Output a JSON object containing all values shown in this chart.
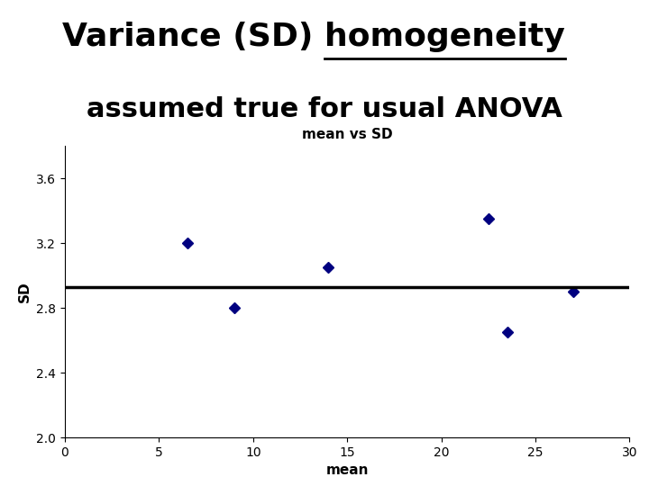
{
  "title_plain": "Variance (SD) ",
  "title_underlined": "homogeneity",
  "title_line2": "assumed true for usual ANOVA",
  "subplot_title": "mean vs SD",
  "xlabel": "mean",
  "ylabel": "SD",
  "x_data": [
    6.5,
    9.0,
    14.0,
    22.5,
    23.5,
    27.0
  ],
  "y_data": [
    3.2,
    2.8,
    3.05,
    3.35,
    2.65,
    2.9
  ],
  "hline_y": 2.93,
  "xlim": [
    0,
    30
  ],
  "ylim": [
    2.0,
    3.8
  ],
  "xticks": [
    0,
    5,
    10,
    15,
    20,
    25,
    30
  ],
  "yticks": [
    2.0,
    2.4,
    2.8,
    3.2,
    3.6
  ],
  "marker_color": "#000080",
  "hline_color": "#000000",
  "bg_color": "#ffffff",
  "title_fontsize": 26,
  "subtitle_fontsize": 22,
  "axis_label_fontsize": 11,
  "tick_fontsize": 10,
  "subplot_title_fontsize": 11
}
